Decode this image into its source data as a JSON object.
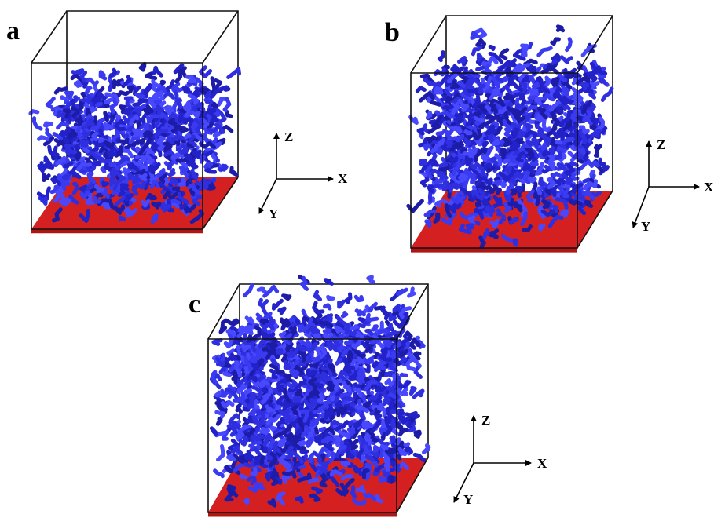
{
  "panels": [
    {
      "label": "a",
      "axes": {
        "z": "Z",
        "x": "X",
        "y": "Y"
      }
    },
    {
      "label": "b",
      "axes": {
        "z": "Z",
        "x": "X",
        "y": "Y"
      }
    },
    {
      "label": "c",
      "axes": {
        "z": "Z",
        "x": "X",
        "y": "Y"
      }
    }
  ]
}
